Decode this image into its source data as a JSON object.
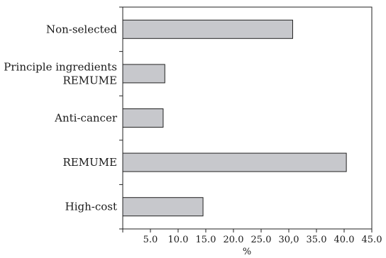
{
  "chart_data": {
    "type": "bar",
    "orientation": "horizontal",
    "categories": [
      [
        "Non-selected"
      ],
      [
        "Principle ingredients",
        "REMUME"
      ],
      [
        "Anti-cancer"
      ],
      [
        "REMUME"
      ],
      [
        "High-cost"
      ]
    ],
    "values": [
      30.7,
      7.6,
      7.3,
      40.4,
      14.5
    ],
    "xlabel": "%",
    "ylabel": "",
    "title": "",
    "xlim": [
      0,
      45
    ],
    "xticks": [
      "5.0",
      "10.0",
      "15.0",
      "20.0",
      "25.0",
      "30,0",
      "35.0",
      "40.0",
      "45.0"
    ],
    "grid": false,
    "colors": {
      "bar_fill": "#c7c8cc",
      "bar_stroke": "#222222"
    }
  }
}
